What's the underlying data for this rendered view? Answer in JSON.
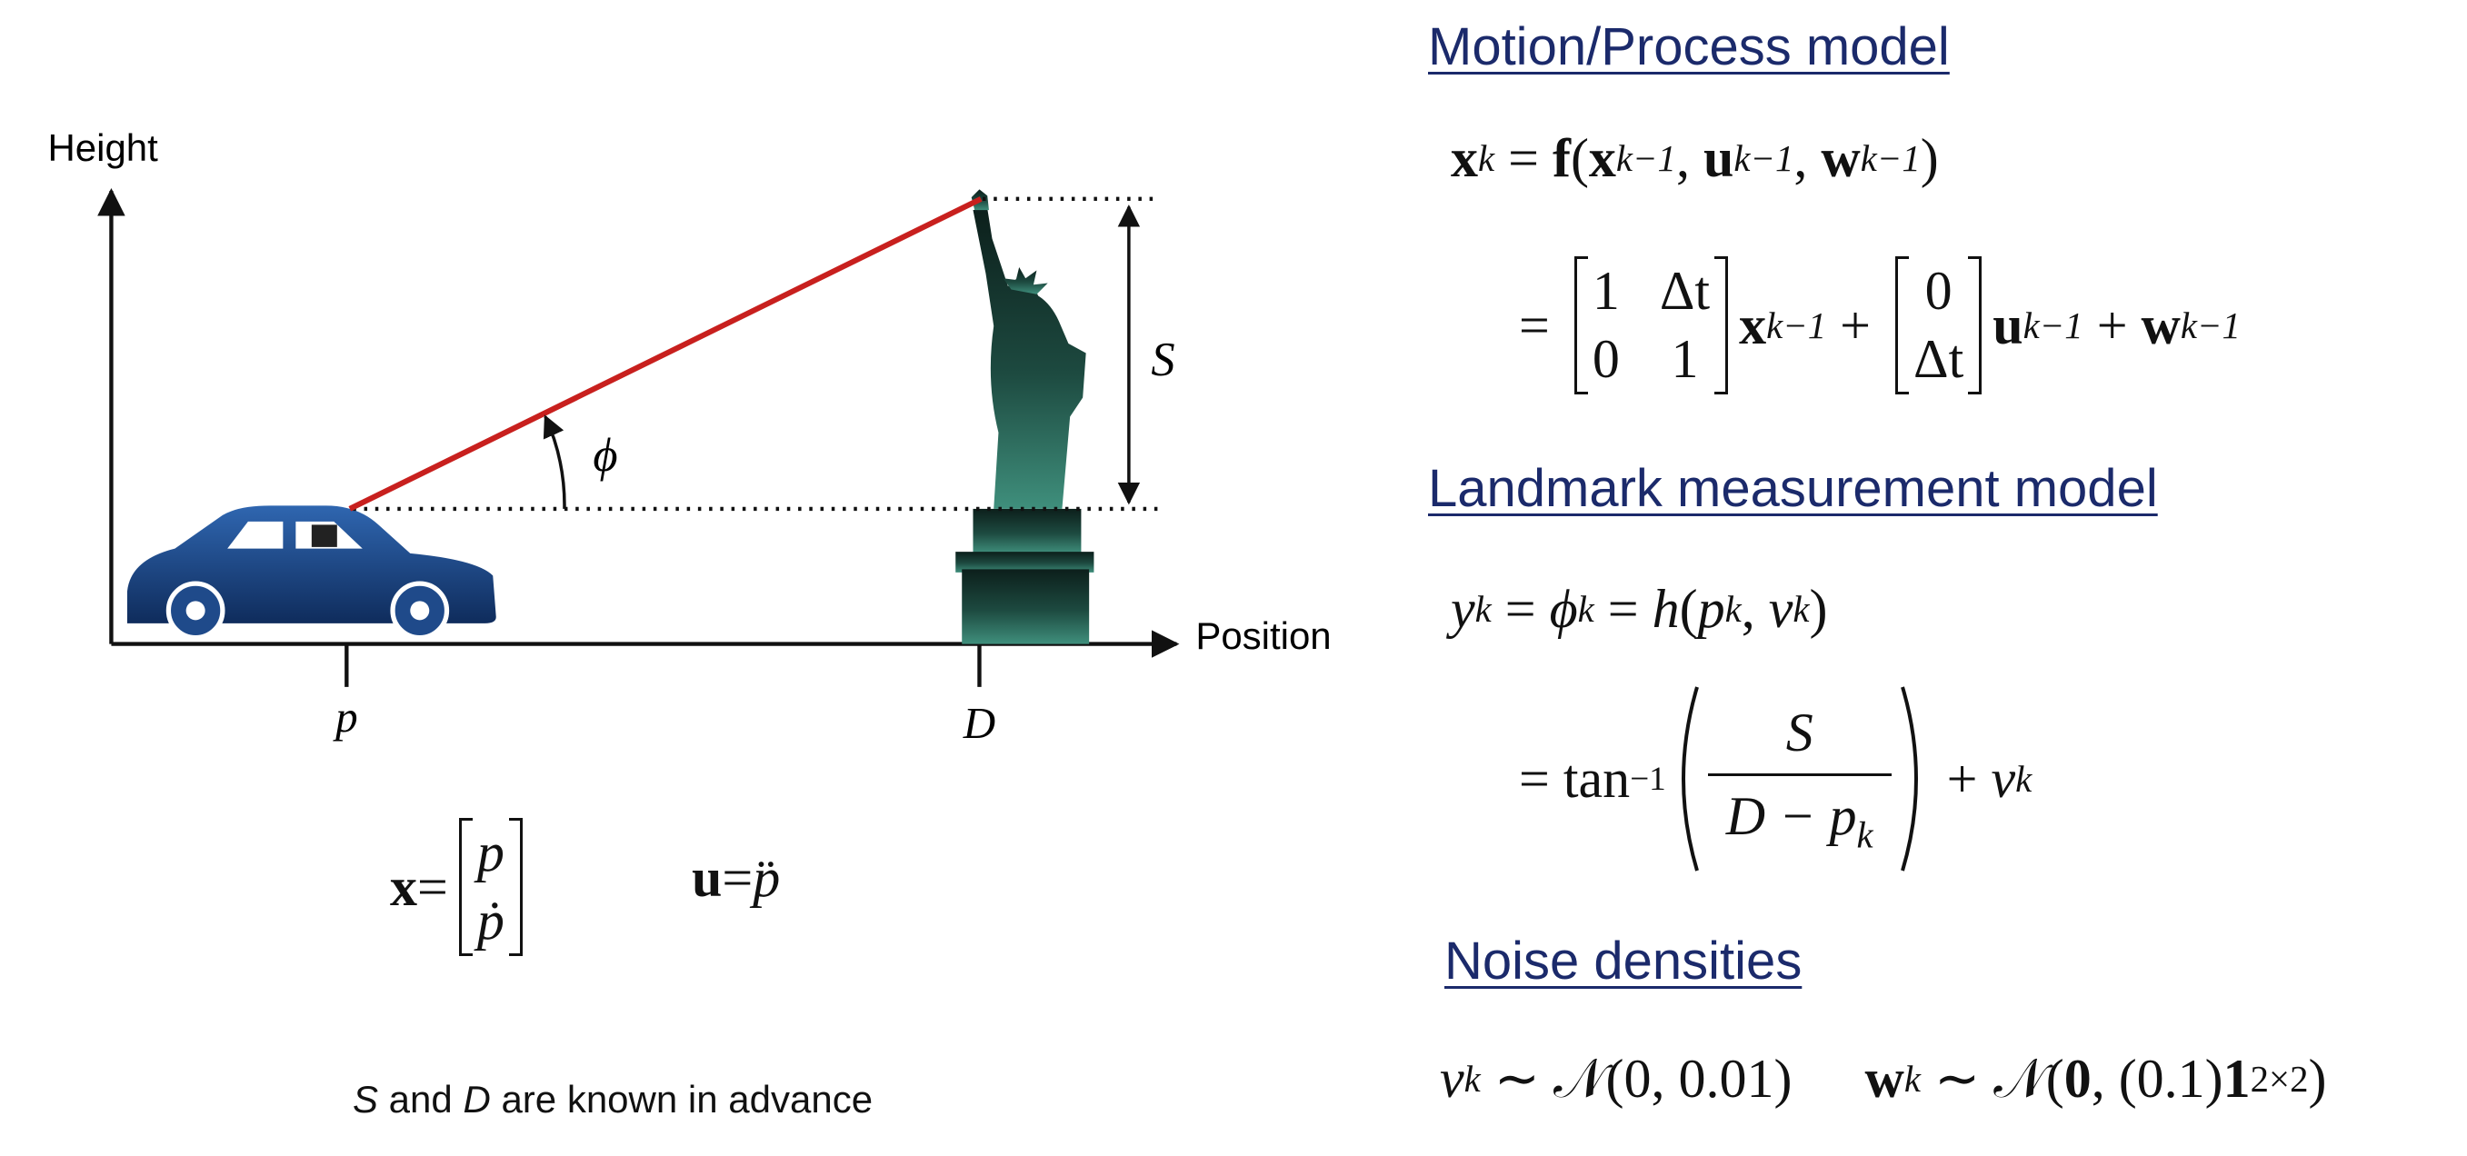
{
  "diagram": {
    "y_axis_label": "Height",
    "x_axis_label": "Position",
    "angle_label": "ϕ",
    "height_label": "S",
    "car_position_label": "p",
    "landmark_position_label": "D"
  },
  "state": {
    "x_lhs": [
      "x",
      " = "
    ],
    "x_entries": [
      "p",
      "ṗ"
    ],
    "u_eq": [
      "u",
      " = ",
      "p̈"
    ]
  },
  "note": [
    "S",
    " and ",
    "D",
    " are known in advance"
  ],
  "motion_model": {
    "heading": "Motion/Process model",
    "line1": [
      "x",
      "k",
      " = ",
      "f",
      "(",
      "x",
      "k−1",
      ", ",
      "u",
      "k−1",
      ", ",
      "w",
      "k−1",
      ")"
    ],
    "line2": {
      "lead": "= ",
      "matrix_a": [
        [
          "1",
          "Δt"
        ],
        [
          "0",
          "1"
        ]
      ],
      "middle": [
        "x",
        "k−1",
        " + "
      ],
      "matrix_b": [
        "0",
        "Δt"
      ],
      "tail": [
        "u",
        "k−1",
        " + ",
        "w",
        "k−1"
      ]
    }
  },
  "measurement_model": {
    "heading": "Landmark measurement model",
    "line1": [
      "y",
      "k",
      " = ",
      "ϕ",
      "k",
      " = ",
      "h",
      "(",
      "p",
      "k",
      ", ",
      "v",
      "k",
      ")"
    ],
    "line2": {
      "lead": "= tan",
      "superscript": "−1",
      "numerator": "S",
      "denominator": [
        "D − ",
        "p",
        "k"
      ],
      "tail": [
        " + ",
        "v",
        "k"
      ]
    }
  },
  "noise": {
    "heading": "Noise densities",
    "line1": [
      "v",
      "k",
      " ∼ ",
      "𝒩",
      "(0, 0.01)"
    ],
    "line2": [
      "w",
      "k",
      " ∼ ",
      "𝒩",
      "(",
      "0",
      ", (0.1)",
      "1",
      "2×2",
      ")"
    ]
  }
}
